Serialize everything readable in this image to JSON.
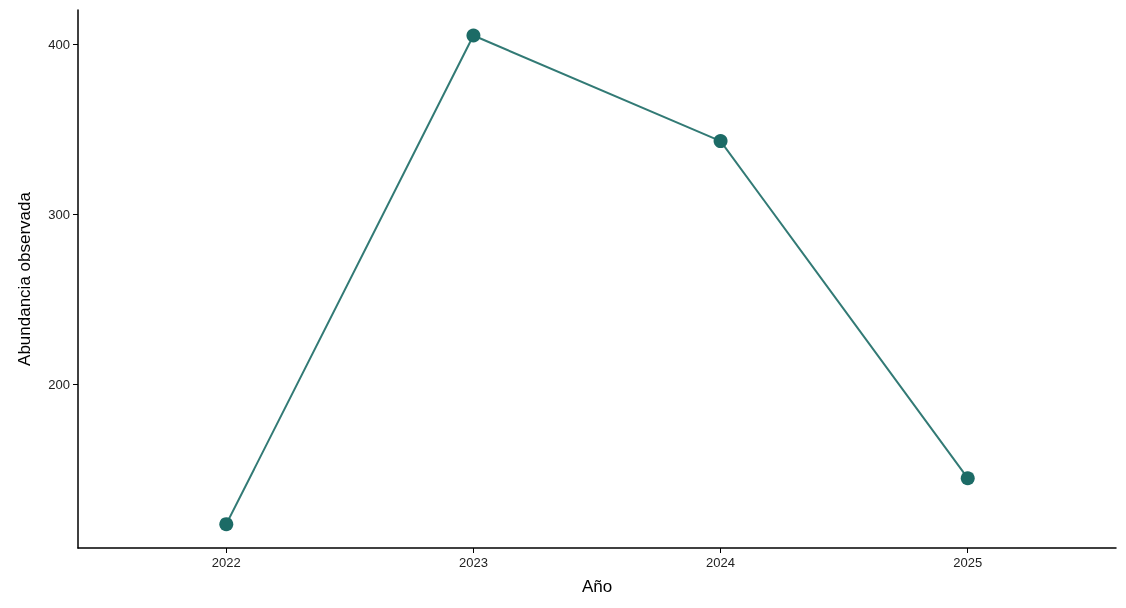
{
  "chart_data": {
    "type": "line",
    "xlabel": "Año",
    "ylabel": "Abundancia observada",
    "x": [
      2022,
      2023,
      2024,
      2025
    ],
    "series": [
      {
        "color": "#1c6b66",
        "values": [
          118,
          405,
          343,
          145
        ]
      }
    ],
    "xlim": [
      2021.4,
      2025.6
    ],
    "xticks": [
      2022,
      2023,
      2024,
      2025
    ],
    "ylim": [
      104,
      420
    ],
    "yticks": [
      200,
      300,
      400
    ],
    "grid": false,
    "marker": "circle",
    "line_style": "solid"
  }
}
